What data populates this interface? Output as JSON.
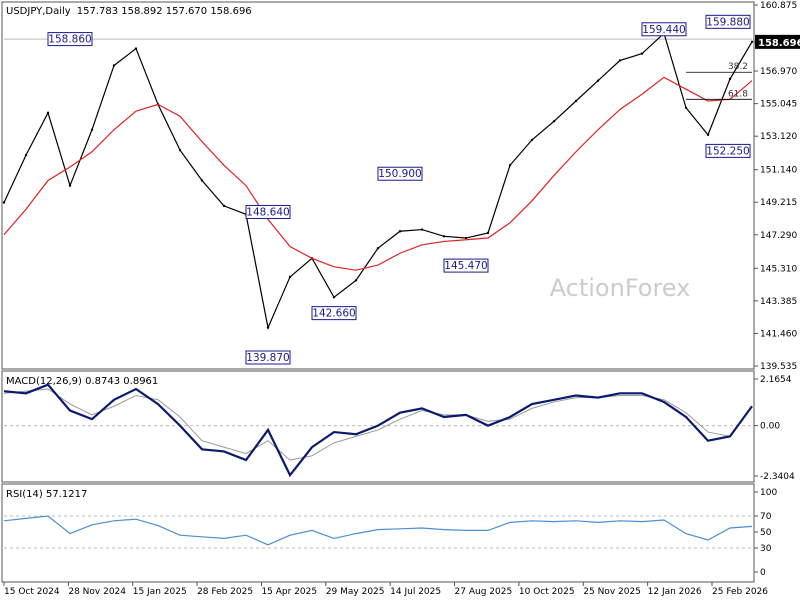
{
  "header": {
    "symbol_line": "USDJPY,Daily",
    "ohlc": "157.783 158.892 157.670 158.696"
  },
  "watermark": "ActionForex",
  "colors": {
    "price": "#000000",
    "ma": "#dd2222",
    "macd": "#0a1a6e",
    "signal": "#999999",
    "rsi": "#4a8fd4",
    "annotation_box": "#1a1a8c",
    "grid": "#bbbbbb",
    "current_price_bg": "#000000",
    "watermark": "#cccccc"
  },
  "x_axis": {
    "ticks": [
      "15 Oct 2024",
      "28 Nov 2024",
      "15 Jan 2025",
      "28 Feb 2025",
      "15 Apr 2025",
      "29 May 2025",
      "14 Jul 2025",
      "27 Aug 2025",
      "10 Oct 2025",
      "25 Nov 2025",
      "12 Jan 2026",
      "25 Feb 2026"
    ]
  },
  "chart_data": [
    {
      "type": "line",
      "name_label": "price",
      "ylim": [
        139.535,
        160.875
      ],
      "y_ticks": [
        "160.875",
        "158.696",
        "156.970",
        "155.045",
        "153.120",
        "151.140",
        "149.215",
        "147.290",
        "145.310",
        "143.385",
        "141.460",
        "139.535"
      ],
      "current_price": "158.696",
      "dates": [
        "15 Oct 2024",
        "1 Nov 2024",
        "15 Nov 2024",
        "28 Nov 2024",
        "15 Dec 2024",
        "1 Jan 2025",
        "15 Jan 2025",
        "1 Feb 2025",
        "15 Feb 2025",
        "28 Feb 2025",
        "15 Mar 2025",
        "1 Apr 2025",
        "15 Apr 2025",
        "1 May 2025",
        "15 May 2025",
        "29 May 2025",
        "15 Jun 2025",
        "1 Jul 2025",
        "14 Jul 2025",
        "1 Aug 2025",
        "15 Aug 2025",
        "27 Aug 2025",
        "15 Sep 2025",
        "1 Oct 2025",
        "10 Oct 2025",
        "1 Nov 2025",
        "15 Nov 2025",
        "25 Nov 2025",
        "15 Dec 2025",
        "1 Jan 2026",
        "12 Jan 2026",
        "1 Feb 2026",
        "15 Feb 2026",
        "25 Feb 2026",
        "8 Mar 2026"
      ],
      "close": [
        149.2,
        152.0,
        154.5,
        150.2,
        153.5,
        157.3,
        158.3,
        155.0,
        152.3,
        150.5,
        149.0,
        148.5,
        141.8,
        144.8,
        145.9,
        143.6,
        144.6,
        146.5,
        147.5,
        147.6,
        147.2,
        147.1,
        147.4,
        151.4,
        152.9,
        154.0,
        155.2,
        156.4,
        157.6,
        158.0,
        159.2,
        154.8,
        153.2,
        156.5,
        158.7
      ],
      "ma_values": [
        147.3,
        148.8,
        150.5,
        151.3,
        152.2,
        153.5,
        154.6,
        155.0,
        154.3,
        152.8,
        151.4,
        150.2,
        148.2,
        146.6,
        145.9,
        145.4,
        145.2,
        145.5,
        146.2,
        146.7,
        146.9,
        147.0,
        147.1,
        148.0,
        149.3,
        150.8,
        152.2,
        153.5,
        154.7,
        155.6,
        156.6,
        155.9,
        155.2,
        155.3,
        156.4
      ],
      "annotations": [
        {
          "label": "158.860",
          "date": "28 Nov 2024",
          "value": 158.86
        },
        {
          "label": "139.870",
          "date": "15 Apr 2025",
          "value": 139.87
        },
        {
          "label": "148.640",
          "date": "15 Apr 2025",
          "value": 148.64
        },
        {
          "label": "142.660",
          "date": "29 May 2025",
          "value": 142.66
        },
        {
          "label": "150.900",
          "date": "14 Jul 2025",
          "value": 150.9
        },
        {
          "label": "145.470",
          "date": "27 Aug 2025",
          "value": 145.47
        },
        {
          "label": "159.440",
          "date": "12 Jan 2026",
          "value": 159.44
        },
        {
          "label": "152.250",
          "date": "25 Feb 2026",
          "value": 152.25
        },
        {
          "label": "159.880",
          "date": "25 Feb 2026",
          "value": 159.88
        }
      ],
      "fib_levels": [
        {
          "label": "38.2",
          "value": 156.9
        },
        {
          "label": "61.8",
          "value": 155.3
        }
      ],
      "horizontal_level": 158.86
    },
    {
      "type": "line",
      "panel_label": "MACD(12,26,9) 0.8743 0.8961",
      "ylim": [
        -2.34,
        2.165
      ],
      "y_ticks": [
        "2.1654",
        "0.00",
        "-2.3404"
      ],
      "macd": [
        1.6,
        1.5,
        1.9,
        0.7,
        0.3,
        1.2,
        1.7,
        1.0,
        0.0,
        -1.1,
        -1.2,
        -1.6,
        -0.2,
        -2.3,
        -1.0,
        -0.3,
        -0.4,
        0.0,
        0.6,
        0.8,
        0.4,
        0.5,
        0.0,
        0.4,
        1.0,
        1.2,
        1.4,
        1.3,
        1.5,
        1.5,
        1.1,
        0.4,
        -0.7,
        -0.5,
        0.9
      ],
      "signal": [
        1.5,
        1.6,
        1.7,
        1.0,
        0.5,
        0.9,
        1.4,
        1.2,
        0.4,
        -0.7,
        -1.0,
        -1.3,
        -0.7,
        -1.6,
        -1.4,
        -0.8,
        -0.5,
        -0.2,
        0.3,
        0.7,
        0.5,
        0.5,
        0.2,
        0.3,
        0.8,
        1.1,
        1.3,
        1.3,
        1.4,
        1.4,
        1.2,
        0.6,
        -0.3,
        -0.5,
        0.9
      ]
    },
    {
      "type": "line",
      "panel_label": "RSI(14) 57.1217",
      "ylim": [
        0,
        100
      ],
      "y_ticks": [
        "100",
        "70",
        "50",
        "30",
        "0"
      ],
      "values": [
        64,
        67,
        70,
        48,
        59,
        64,
        66,
        58,
        46,
        44,
        42,
        46,
        34,
        46,
        52,
        42,
        48,
        53,
        54,
        55,
        53,
        52,
        52,
        62,
        64,
        63,
        64,
        62,
        64,
        63,
        65,
        48,
        40,
        55,
        57
      ]
    }
  ]
}
